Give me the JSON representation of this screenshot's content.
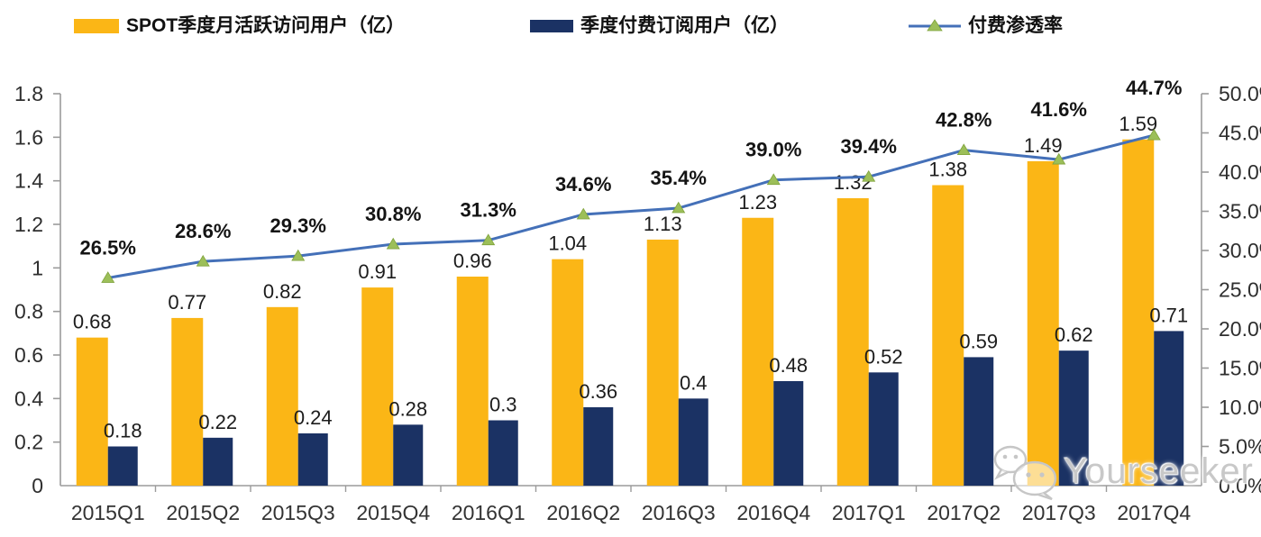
{
  "legend": {
    "items": [
      {
        "label": "SPOT季度月活跃访问用户（亿）",
        "swatch": "bar"
      },
      {
        "label": "季度付费订阅用户（亿）",
        "swatch": "bar"
      },
      {
        "label": "付费渗透率",
        "swatch": "line-marker"
      }
    ]
  },
  "chart_data": {
    "type": "combo",
    "categories": [
      "2015Q1",
      "2015Q2",
      "2015Q3",
      "2015Q4",
      "2016Q1",
      "2016Q2",
      "2016Q3",
      "2016Q4",
      "2017Q1",
      "2017Q2",
      "2017Q3",
      "2017Q4"
    ],
    "series": [
      {
        "name": "SPOT季度月活跃访问用户（亿）",
        "type": "bar",
        "axis": "left",
        "color": "#FBB616",
        "values": [
          0.68,
          0.77,
          0.82,
          0.91,
          0.96,
          1.04,
          1.13,
          1.23,
          1.32,
          1.38,
          1.49,
          1.59
        ],
        "labels": [
          "0.68",
          "0.77",
          "0.82",
          "0.91",
          "0.96",
          "1.04",
          "1.13",
          "1.23",
          "1.32",
          "1.38",
          "1.49",
          "1.59"
        ]
      },
      {
        "name": "季度付费订阅用户（亿）",
        "type": "bar",
        "axis": "left",
        "color": "#1B3264",
        "values": [
          0.18,
          0.22,
          0.24,
          0.28,
          0.3,
          0.36,
          0.4,
          0.48,
          0.52,
          0.59,
          0.62,
          0.71
        ],
        "labels": [
          "0.18",
          "0.22",
          "0.24",
          "0.28",
          "0.3",
          "0.36",
          "0.4",
          "0.48",
          "0.52",
          "0.59",
          "0.62",
          "0.71"
        ]
      },
      {
        "name": "付费渗透率",
        "type": "line",
        "axis": "right",
        "color": "#4470B8",
        "marker": "triangle",
        "marker_color": "#9CBF59",
        "values": [
          26.5,
          28.6,
          29.3,
          30.8,
          31.3,
          34.6,
          35.4,
          39.0,
          39.4,
          42.8,
          41.6,
          44.7
        ],
        "labels": [
          "26.5%",
          "28.6%",
          "29.3%",
          "30.8%",
          "31.3%",
          "34.6%",
          "35.4%",
          "39.0%",
          "39.4%",
          "42.8%",
          "41.6%",
          "44.7%"
        ]
      }
    ],
    "left_axis": {
      "min": 0,
      "max": 1.8,
      "tick_labels": [
        "0",
        "0.2",
        "0.4",
        "0.6",
        "0.8",
        "1",
        "1.2",
        "1.4",
        "1.6",
        "1.8"
      ]
    },
    "right_axis": {
      "min": 0,
      "max": 50,
      "tick_labels": [
        "0.0%",
        "5.0%",
        "10.0%",
        "15.0%",
        "20.0%",
        "25.0%",
        "30.0%",
        "35.0%",
        "40.0%",
        "45.0%",
        "50.0%"
      ]
    },
    "grid": false,
    "legend_position": "top"
  },
  "watermark": {
    "text": "Yourseeker",
    "icon": "wechat-icon"
  }
}
